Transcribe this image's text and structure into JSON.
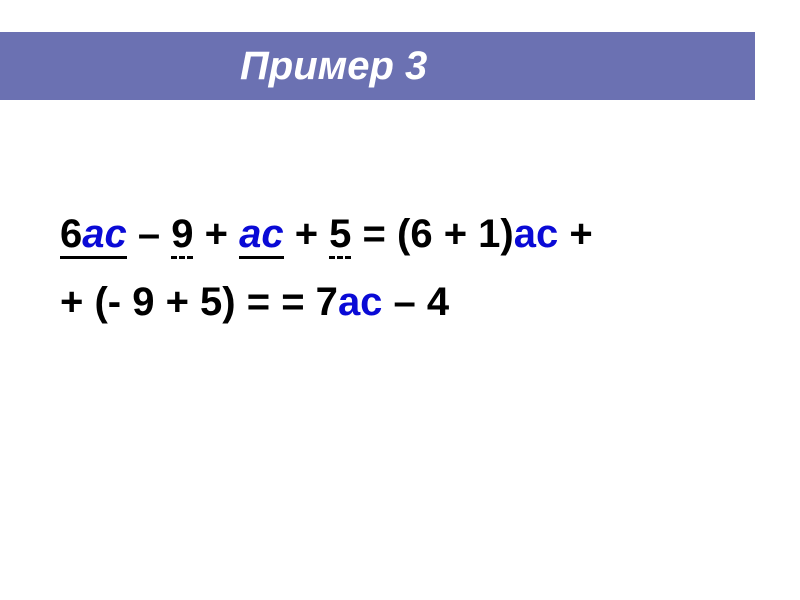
{
  "colors": {
    "band": "#6b71b2",
    "ac": "#0a0ad6",
    "text": "#000000",
    "background": "#ffffff"
  },
  "title": "Пример 3",
  "typography": {
    "title_fontsize": 40,
    "title_style": "italic bold",
    "body_fontsize": 40,
    "body_weight": "bold"
  },
  "expression": {
    "line1": {
      "t1_coef": "6",
      "t1_var": "ас",
      "op1": " – ",
      "t2": "9",
      "op2": " + ",
      "t3_var": "ас",
      "op3": " + ",
      "t4": "5",
      "eq1": " = ",
      "rhs1_open": "(6 + 1)",
      "rhs1_var": "ас",
      "rhs1_tail": " +"
    },
    "line2": {
      "lead": "+ (- 9 + 5) = = 7",
      "var": "ас",
      "tail": " – 4"
    }
  }
}
